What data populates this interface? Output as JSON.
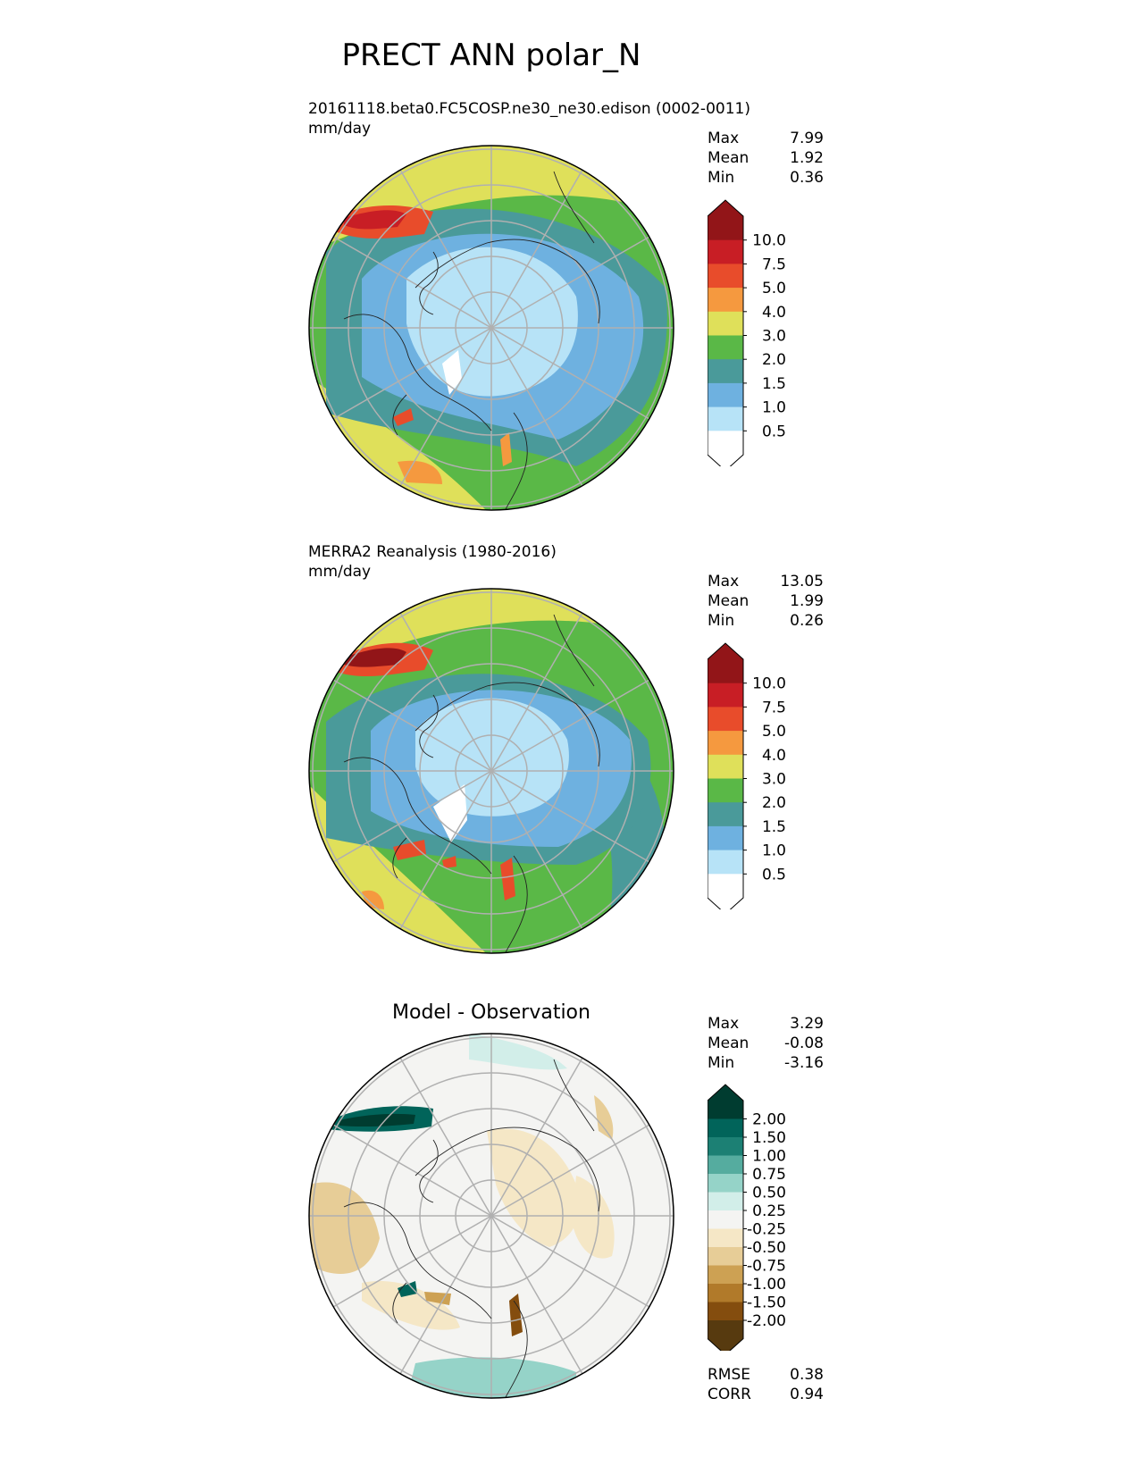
{
  "figure": {
    "title": "PRECT ANN polar_N"
  },
  "colors": {
    "prect": [
      "#ffffff",
      "#b7e3f7",
      "#6eb1e0",
      "#4a9a9a",
      "#5ab847",
      "#dfe05a",
      "#f5993f",
      "#e84c2b",
      "#c81e25",
      "#921518"
    ],
    "diff": [
      "#573a0f",
      "#844d0e",
      "#b17a2a",
      "#cda153",
      "#e7cd97",
      "#f5e7c6",
      "#f4f4f2",
      "#d2eee9",
      "#95d3c8",
      "#55ac9f",
      "#1c8074",
      "#01645a",
      "#003c30"
    ]
  },
  "panels": [
    {
      "id": "test",
      "title_line1": "20161118.beta0.FC5COSP.ne30_ne30.edison (0002-0011)",
      "title_line2": "mm/day",
      "stats": {
        "max_label": "Max",
        "max": "7.99",
        "mean_label": "Mean",
        "mean": "1.92",
        "min_label": "Min",
        "min": "0.36"
      },
      "colorbar_ticks": [
        "10.0",
        "7.5",
        "5.0",
        "4.0",
        "3.0",
        "2.0",
        "1.5",
        "1.0",
        "0.5"
      ]
    },
    {
      "id": "ref",
      "title_line1": "MERRA2 Reanalysis (1980-2016)",
      "title_line2": "mm/day",
      "stats": {
        "max_label": "Max",
        "max": "13.05",
        "mean_label": "Mean",
        "mean": "1.99",
        "min_label": "Min",
        "min": "0.26"
      },
      "colorbar_ticks": [
        "10.0",
        "7.5",
        "5.0",
        "4.0",
        "3.0",
        "2.0",
        "1.5",
        "1.0",
        "0.5"
      ]
    },
    {
      "id": "diff",
      "title": "Model - Observation",
      "stats": {
        "max_label": "Max",
        "max": "3.29",
        "mean_label": "Mean",
        "mean": "-0.08",
        "min_label": "Min",
        "min": "-3.16"
      },
      "colorbar_ticks": [
        "2.00",
        "1.50",
        "1.00",
        "0.75",
        "0.50",
        "0.25",
        "-0.25",
        "-0.50",
        "-0.75",
        "-1.00",
        "-1.50",
        "-2.00"
      ],
      "metrics": {
        "rmse_label": "RMSE",
        "rmse": "0.38",
        "corr_label": "CORR",
        "corr": "0.94"
      }
    }
  ]
}
